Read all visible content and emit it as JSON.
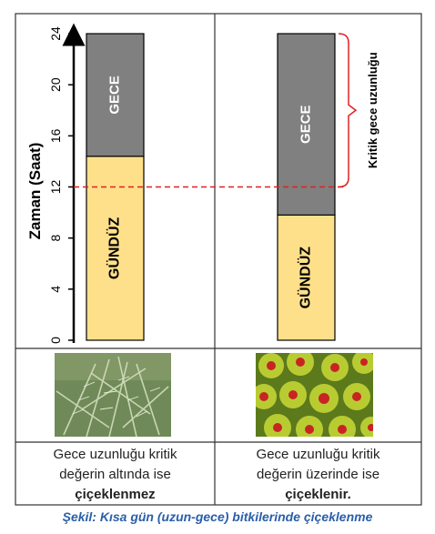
{
  "y_axis": {
    "label": "Zaman (Saat)",
    "ticks": [
      "0",
      "4",
      "8",
      "12",
      "16",
      "20",
      "24"
    ],
    "range": [
      0,
      24
    ]
  },
  "critical_night_hours": 12,
  "panels": [
    {
      "day_label": "GÜNDÜZ",
      "night_label": "GECE",
      "day_hours": 14.4,
      "caption_line1": "Gece uzunluğu kritik",
      "caption_line2": "değerin altında ise",
      "caption_bold": "çiçeklenmez"
    },
    {
      "day_label": "GÜNDÜZ",
      "night_label": "GECE",
      "day_hours": 9.8,
      "critical_label": "Kritik gece uzunluğu",
      "caption_line1": "Gece uzunluğu kritik",
      "caption_line2": "değerin üzerinde ise",
      "caption_bold": "çiçeklenir."
    }
  ],
  "colors": {
    "day": "#ffe08a",
    "night": "#808080",
    "critical_line": "#e02020",
    "caption": "#2a5fa8",
    "plant1": "#6f8a58",
    "plant2": "#9bb52a",
    "flower": "#c82424"
  },
  "figure_caption": "Şekil: Kısa gün (uzun-gece) bitkilerinde çiçeklenme"
}
